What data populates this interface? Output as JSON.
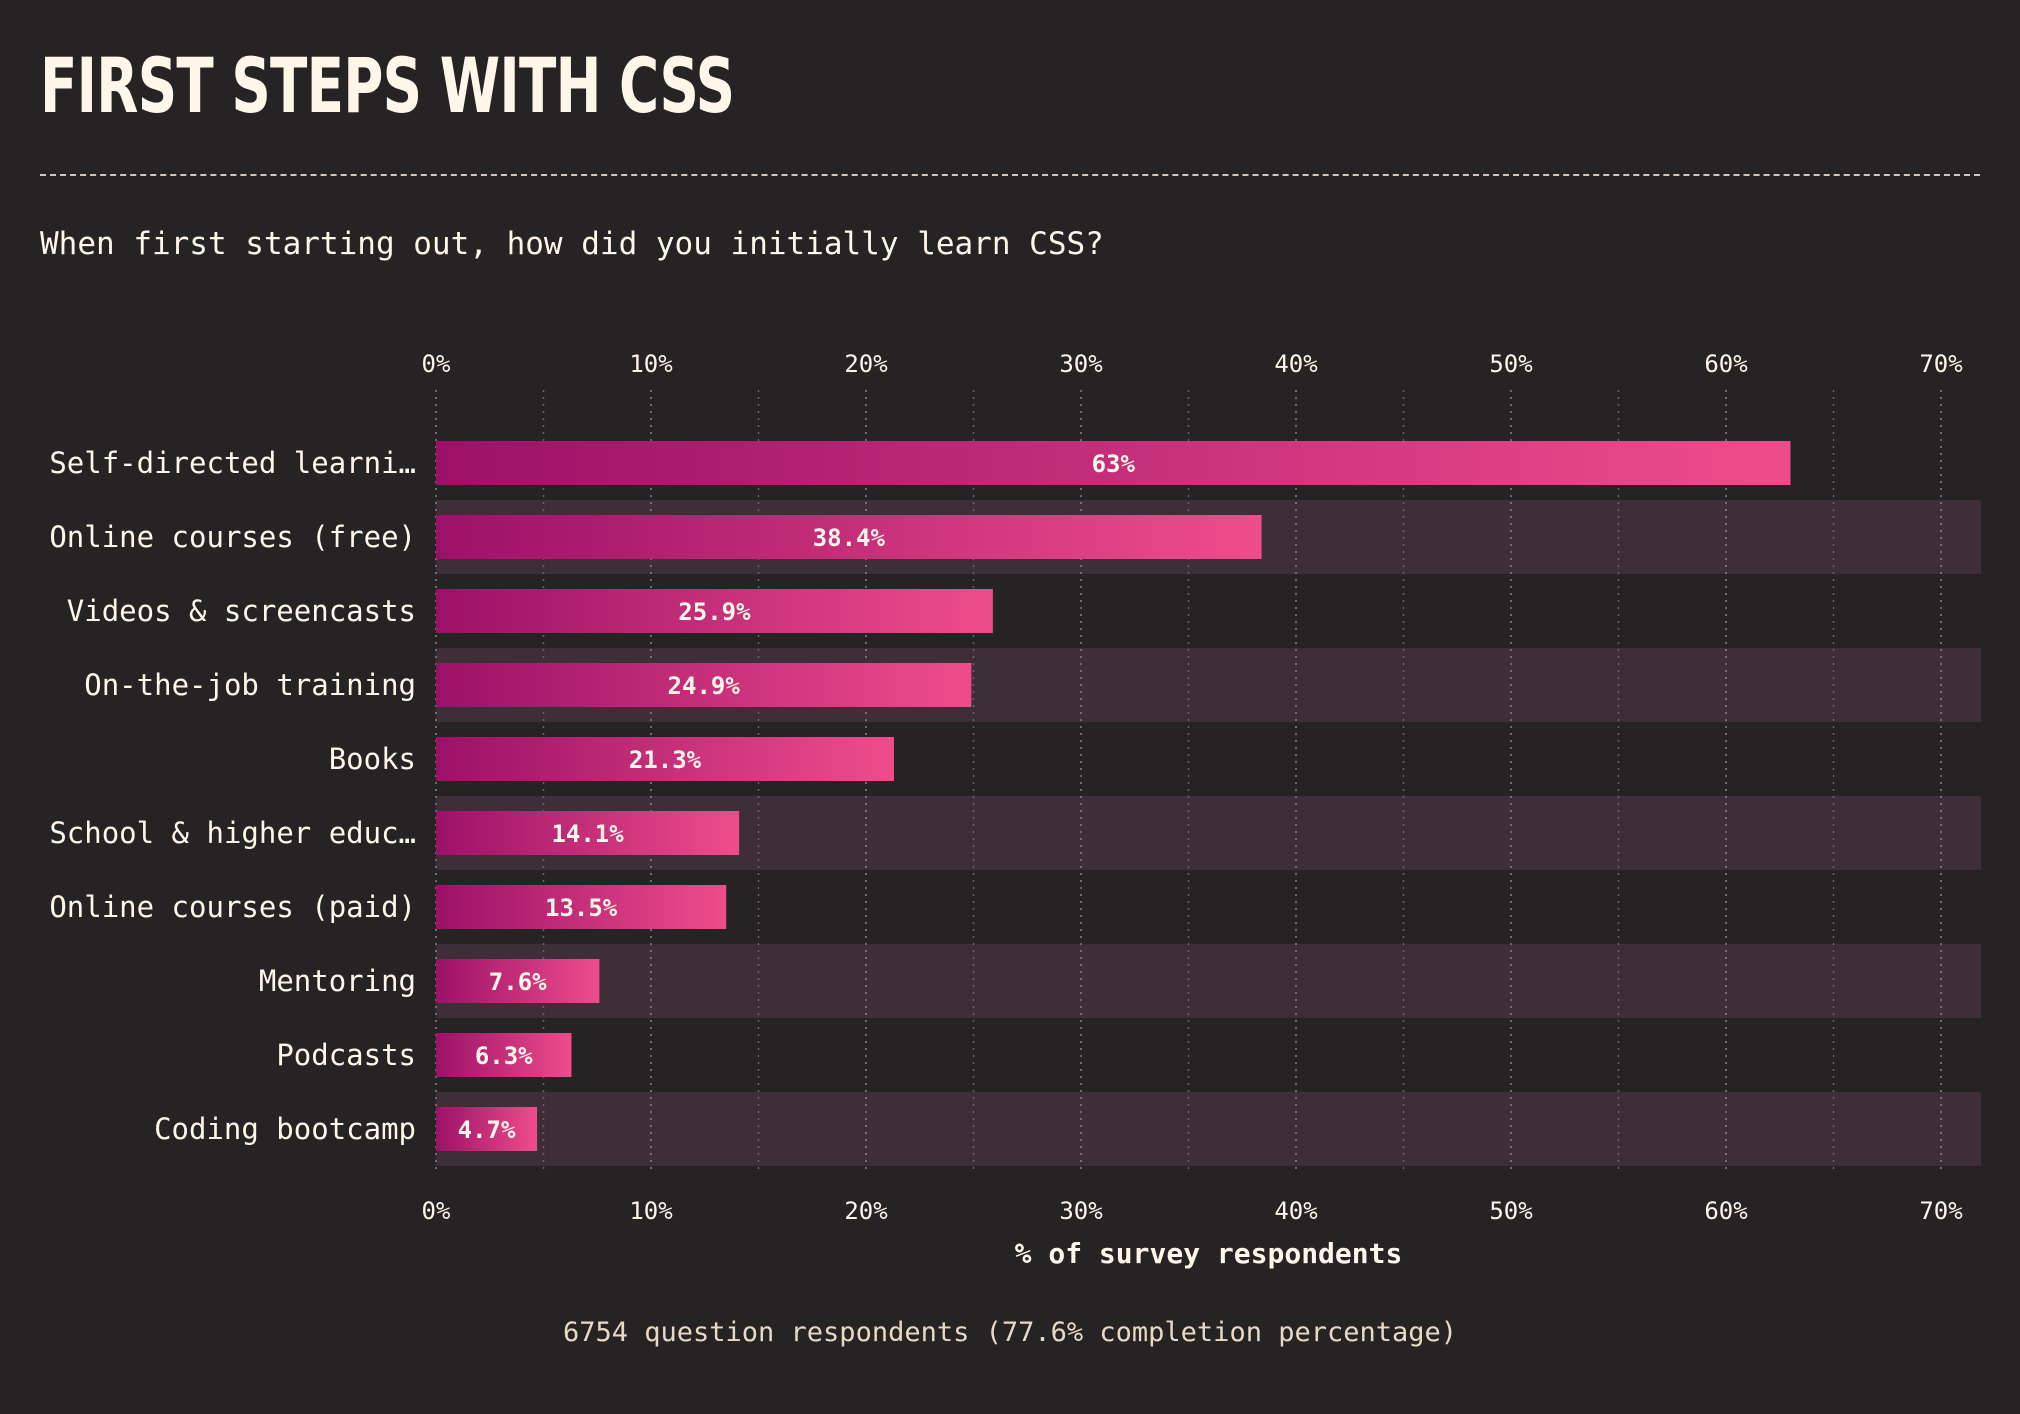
{
  "title": "FIRST STEPS WITH CSS",
  "question": "When first starting out, how did you initially learn CSS?",
  "footer": "6754 question respondents (77.6% completion percentage)",
  "colors": {
    "background": "#262325",
    "stripe": "#3d2e38",
    "bar_start": "#9c1168",
    "bar_end": "#ee4d8a",
    "text": "#fff6ea"
  },
  "chart_data": {
    "type": "bar",
    "orientation": "horizontal",
    "categories": [
      "Self-directed learni…",
      "Online courses (free)",
      "Videos & screencasts",
      "On-the-job training",
      "Books",
      "School & higher educ…",
      "Online courses (paid)",
      "Mentoring",
      "Podcasts",
      "Coding bootcamp"
    ],
    "values": [
      63,
      38.4,
      25.9,
      24.9,
      21.3,
      14.1,
      13.5,
      7.6,
      6.3,
      4.7
    ],
    "value_labels": [
      "63%",
      "38.4%",
      "25.9%",
      "24.9%",
      "21.3%",
      "14.1%",
      "13.5%",
      "7.6%",
      "6.3%",
      "4.7%"
    ],
    "xlim": [
      0,
      70
    ],
    "xticks": [
      0,
      10,
      20,
      30,
      40,
      50,
      60,
      70
    ],
    "xtick_labels": [
      "0%",
      "10%",
      "20%",
      "30%",
      "40%",
      "50%",
      "60%",
      "70%"
    ],
    "xlabel": "% of survey respondents",
    "grid": true,
    "minor_grid_step": 5,
    "alternating_row_stripes": true
  }
}
